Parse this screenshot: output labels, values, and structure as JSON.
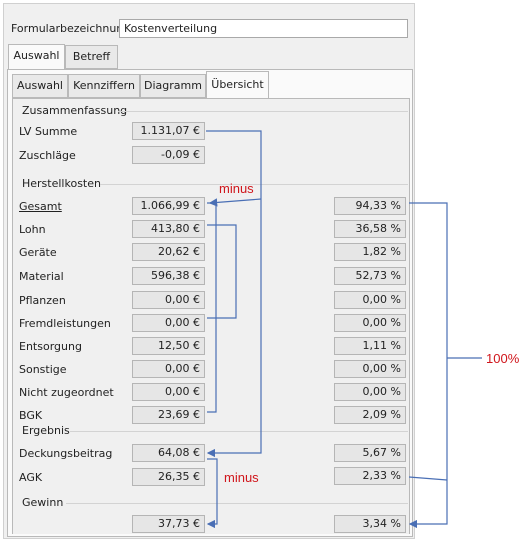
{
  "header": {
    "label": "Formularbezeichnung:",
    "value": "Kostenverteilung"
  },
  "outer_tabs": [
    "Auswahl",
    "Betreff"
  ],
  "inner_tabs": [
    "Auswahl",
    "Kennziffern",
    "Diagramm",
    "Übersicht"
  ],
  "zusammenfassung": {
    "title": "Zusammenfassung",
    "rows": [
      {
        "label": "LV Summe",
        "value": "1.131,07 €"
      },
      {
        "label": "Zuschläge",
        "value": "-0,09 €"
      }
    ]
  },
  "herstellkosten": {
    "title": "Herstellkosten",
    "rows": [
      {
        "label": "Gesamt",
        "value": "1.066,99 €",
        "percent": "94,33 %"
      },
      {
        "label": "Lohn",
        "value": "413,80 €",
        "percent": "36,58 %"
      },
      {
        "label": "Geräte",
        "value": "20,62 €",
        "percent": "1,82 %"
      },
      {
        "label": "Material",
        "value": "596,38 €",
        "percent": "52,73 %"
      },
      {
        "label": "Pflanzen",
        "value": "0,00 €",
        "percent": "0,00 %"
      },
      {
        "label": "Fremdleistungen",
        "value": "0,00 €",
        "percent": "0,00 %"
      },
      {
        "label": "Entsorgung",
        "value": "12,50 €",
        "percent": "1,11 %"
      },
      {
        "label": "Sonstige",
        "value": "0,00 €",
        "percent": "0,00 %"
      },
      {
        "label": "Nicht zugeordnet",
        "value": "0,00 €",
        "percent": "0,00 %"
      },
      {
        "label": "BGK",
        "value": "23,69 €",
        "percent": "2,09 %"
      }
    ]
  },
  "ergebnis": {
    "title": "Ergebnis",
    "rows": [
      {
        "label": "Deckungsbeitrag",
        "value": "64,08 €",
        "percent": "5,67 %"
      },
      {
        "label": "AGK",
        "value": "26,35 €",
        "percent": "2,33 %"
      }
    ]
  },
  "gewinn": {
    "title": "Gewinn",
    "value": "37,73 €",
    "percent": "3,34 %"
  },
  "annotations": {
    "minus_1": "minus",
    "minus_2": "minus",
    "hundred": "100%"
  },
  "colors": {
    "annotation_text": "#d0161c",
    "annotation_line": "#4a6fb5"
  }
}
